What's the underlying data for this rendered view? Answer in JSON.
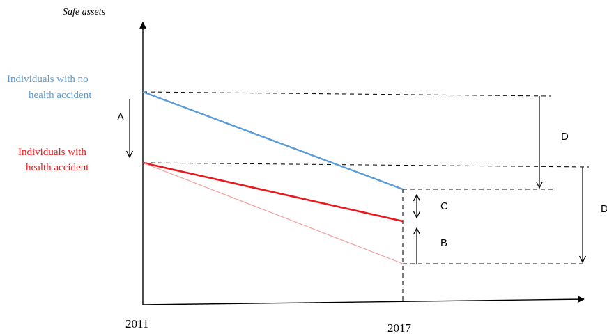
{
  "diagram": {
    "y_axis_label": "Safe assets",
    "x_labels": {
      "start": "2011",
      "end": "2017"
    },
    "groups": {
      "no_accident": {
        "label_line1": "Individuals with no",
        "label_line2": "health accident",
        "color": "#5b9bd5"
      },
      "accident": {
        "label_line1": "Individuals with",
        "label_line2": "health accident",
        "color": "#e8191c"
      }
    },
    "effect_labels": {
      "a": "A",
      "b": "B",
      "c": "C",
      "d1": "D",
      "d2": "D"
    },
    "colors": {
      "axis": "#000000",
      "guide": "#111111",
      "dotted_line": "#f2a0a0"
    }
  }
}
